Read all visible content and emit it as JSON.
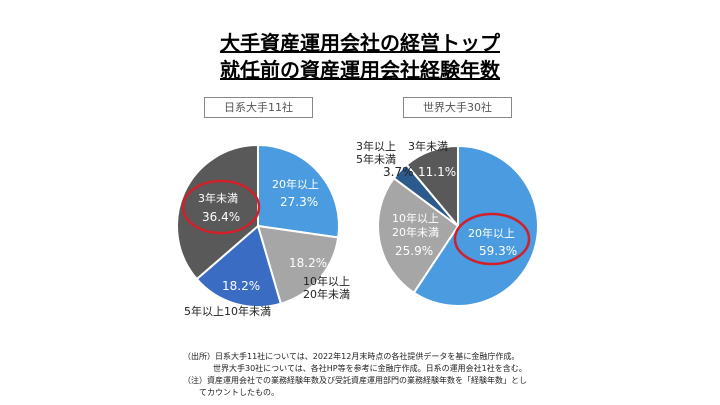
{
  "title": {
    "line1": "大手資産運用会社の経営トップ",
    "line2": "就任前の資産運用会社経験年数"
  },
  "chart_data": [
    {
      "type": "pie",
      "title": "日系大手11社",
      "start": "top",
      "direction": "clockwise",
      "slices": [
        {
          "label": "20年以上",
          "value": 27.3,
          "value_label": "27.3%",
          "color": "#4a9be0"
        },
        {
          "label": "10年以上20年未満",
          "value": 18.2,
          "value_label": "18.2%",
          "color": "#a6a6a6"
        },
        {
          "label": "5年以上10年未満",
          "value": 18.2,
          "value_label": "18.2%",
          "color": "#3a6cc4"
        },
        {
          "label": "3年未満",
          "value": 36.4,
          "value_label": "36.4%",
          "color": "#595959",
          "highlighted": true
        }
      ]
    },
    {
      "type": "pie",
      "title": "世界大手30社",
      "start": "top",
      "direction": "clockwise",
      "slices": [
        {
          "label": "20年以上",
          "value": 59.3,
          "value_label": "59.3%",
          "color": "#4a9be0",
          "highlighted": true
        },
        {
          "label": "10年以上20年未満",
          "value": 25.9,
          "value_label": "25.9%",
          "color": "#a6a6a6"
        },
        {
          "label": "3年以上5年未満",
          "value": 3.7,
          "value_label": "3.7%",
          "color": "#2d5a8c"
        },
        {
          "label": "3年未満",
          "value": 11.1,
          "value_label": "11.1%",
          "color": "#595959"
        }
      ]
    }
  ],
  "labels": {
    "l_20": "20年以上",
    "l_10a": "10年以上",
    "l_10b": "20年未満",
    "l_5": "5年以上10年未満",
    "l_3": "3年未満",
    "r_20": "20年以上",
    "r_10a": "10年以上",
    "r_10b": "20年未満",
    "r_35a": "3年以上",
    "r_35b": "5年未満",
    "r_3": "3年未満"
  },
  "notes": [
    "（出所）日系大手11社については、2022年12月末時点の各社提供データを基に金融庁作成。",
    "世界大手30社については、各社HP等を参考に金融庁作成。日系の運用会社1社を含む。",
    "（注）資産運用会社での業務経験年数及び受託資産運用部門の業務経験年数を「経験年数」とし",
    "てカウントしたもの。"
  ],
  "colors": {
    "highlight": "#d0202a"
  }
}
